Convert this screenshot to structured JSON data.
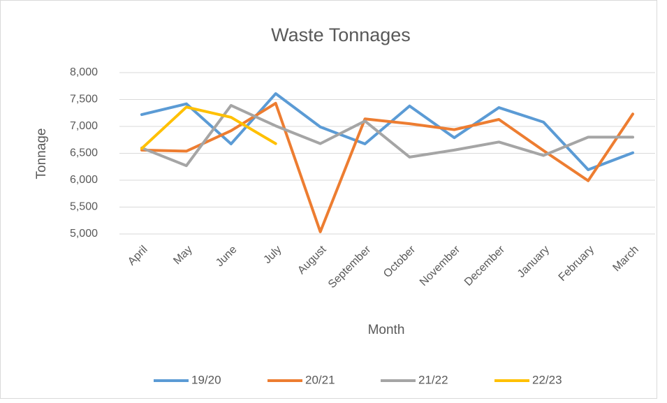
{
  "chart_data": {
    "type": "line",
    "title": "Waste Tonnages",
    "x_label": "Month",
    "y_label": "Tonnage",
    "categories": [
      "April",
      "May",
      "June",
      "July",
      "August",
      "September",
      "October",
      "November",
      "December",
      "January",
      "February",
      "March"
    ],
    "series": [
      {
        "name": "19/20",
        "color": "#5b9bd5",
        "values": [
          7220,
          7420,
          6675,
          7610,
          6990,
          6675,
          7380,
          6790,
          7350,
          7080,
          6195,
          6510
        ]
      },
      {
        "name": "20/21",
        "color": "#ed7d31",
        "values": [
          6560,
          6540,
          6920,
          7430,
          5040,
          7140,
          7050,
          6940,
          7130,
          6550,
          5990,
          7230
        ]
      },
      {
        "name": "21/22",
        "color": "#a5a5a5",
        "values": [
          6600,
          6270,
          7390,
          7010,
          6680,
          7100,
          6430,
          6560,
          6710,
          6460,
          6800,
          6800
        ]
      },
      {
        "name": "22/23",
        "color": "#ffc000",
        "values": [
          6590,
          7360,
          7170,
          6680,
          null,
          null,
          null,
          null,
          null,
          null,
          null,
          null
        ]
      }
    ],
    "ylim": [
      5000,
      8000
    ],
    "yticks": [
      {
        "value": 5000,
        "label": "5,000"
      },
      {
        "value": 5500,
        "label": "5,500"
      },
      {
        "value": 6000,
        "label": "6,000"
      },
      {
        "value": 6500,
        "label": "6,500"
      },
      {
        "value": 7000,
        "label": "7,000"
      },
      {
        "value": 7500,
        "label": "7,500"
      },
      {
        "value": 8000,
        "label": "8,000"
      }
    ],
    "grid": true,
    "legend": "bottom"
  }
}
